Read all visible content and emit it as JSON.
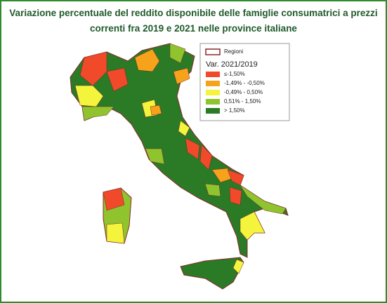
{
  "header": {
    "title_lines": [
      "Variazione percentuale del reddito disponibile delle famiglie consumatrici a prezzi",
      "correnti fra 2019  e 2021  nelle province italiane"
    ]
  },
  "legend": {
    "boundary_label": "Regioni",
    "title": "Var. 2021/2019",
    "items": [
      {
        "label": "≤-1,50%",
        "color": "#f04a2a"
      },
      {
        "label": "-1,49% - -0,50%",
        "color": "#f7a21b"
      },
      {
        "label": "-0,49% - 0,50%",
        "color": "#f4f43c"
      },
      {
        "label": "0,51% - 1,50%",
        "color": "#8fc42e"
      },
      {
        "label": "> 1,50%",
        "color": "#2a7a26"
      }
    ]
  }
}
